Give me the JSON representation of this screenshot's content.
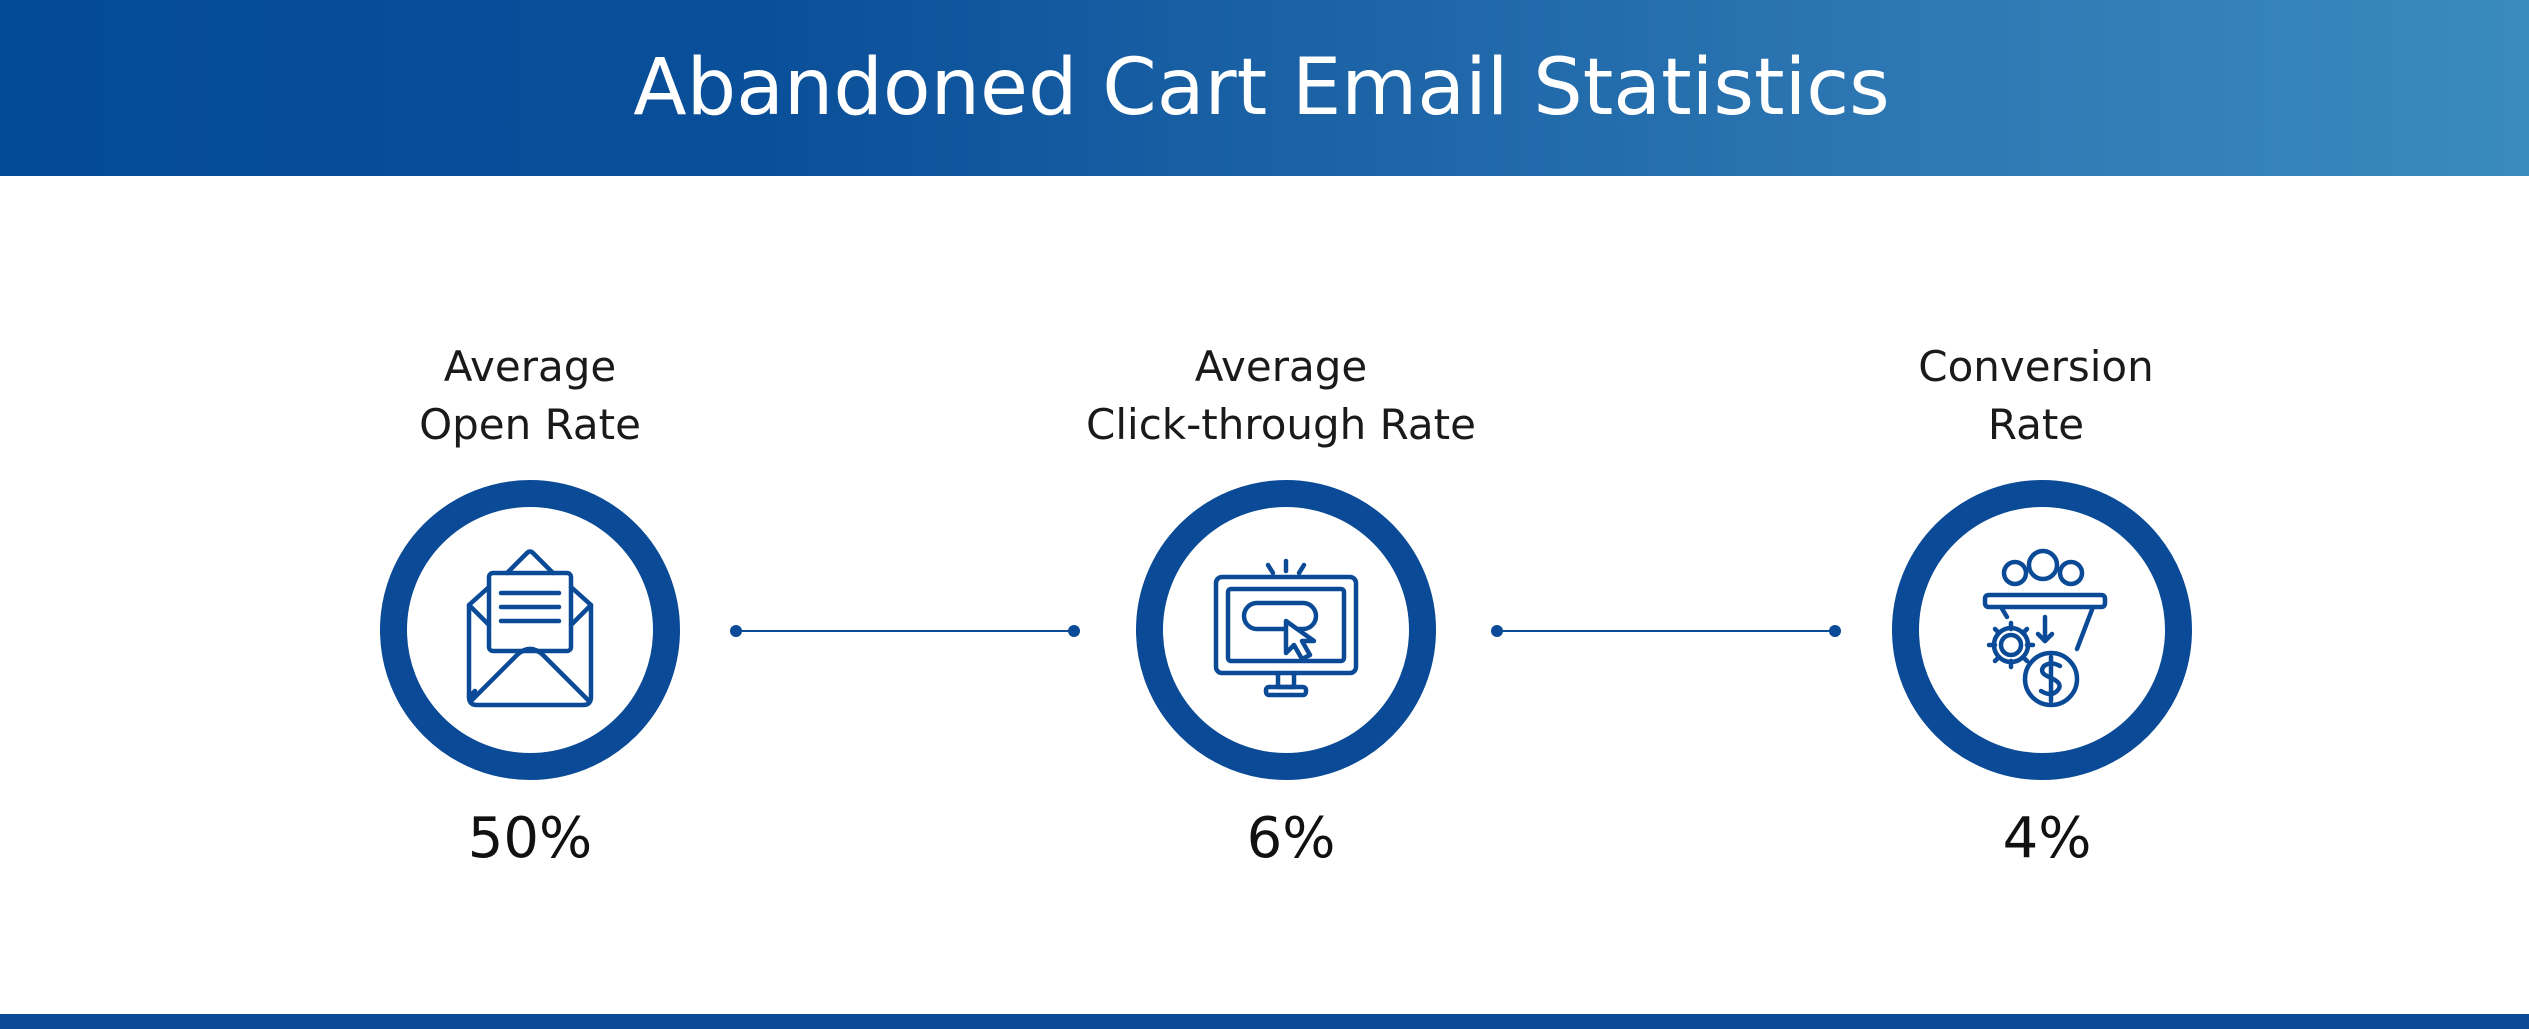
{
  "header": {
    "title": "Abandoned Cart Email Statistics"
  },
  "stats": [
    {
      "label_line1": "Average",
      "label_line2": "Open Rate",
      "value": "50%",
      "icon": "open-envelope-icon"
    },
    {
      "label_line1": "Average",
      "label_line2": "Click-through Rate",
      "value": "6%",
      "icon": "monitor-click-icon"
    },
    {
      "label_line1": "Conversion",
      "label_line2": "Rate",
      "value": "4%",
      "icon": "conversion-funnel-icon"
    }
  ],
  "colors": {
    "primary": "#0a4a96",
    "header_start": "#034a99",
    "header_end": "#3a8bbd",
    "text": "#1a1a1a"
  }
}
